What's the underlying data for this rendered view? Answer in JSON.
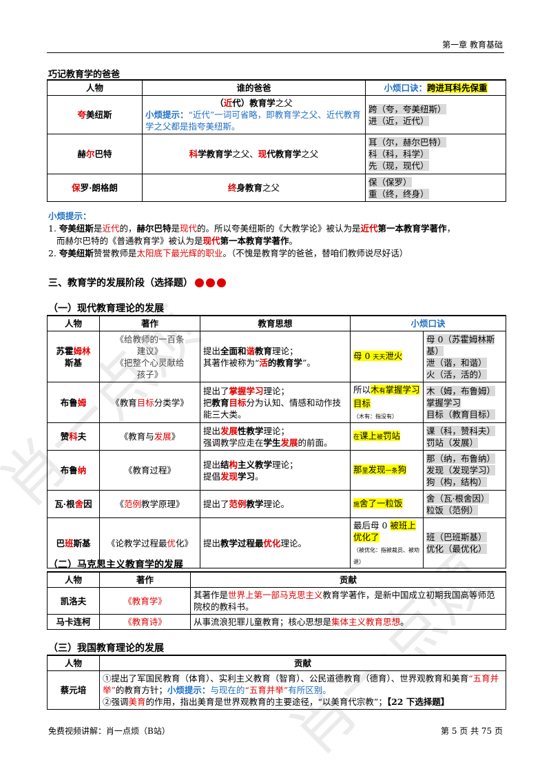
{
  "header": {
    "chapter": "第一章  教育基础"
  },
  "footer": {
    "left": "免费视频讲解：肖一点烦（B站）",
    "right": "第 5 页 共 75 页"
  },
  "watermark": "肖一点烦",
  "section_fathers": {
    "title": "巧记教育学的爸爸",
    "headers": {
      "person": "人物",
      "who": "谁的爸爸",
      "mnemonic_label": "小烦口诀：",
      "mnemonic": "跨进耳科先保重"
    },
    "rows": [
      {
        "name_red": "夸",
        "name_rest": "美纽斯",
        "who_line1_a": "（",
        "who_line1_red": "近",
        "who_line1_b": "代）教育学",
        "who_line1_c": "之父",
        "tip_label": "小烦提示：",
        "tip_text": "“近代”一词可省略，即教育学之父、近代教育学之父都是指夸美纽斯。",
        "mn": [
          "跨（夸，夸美纽斯）",
          "进（近，近代）"
        ]
      },
      {
        "name_a": "赫",
        "name_red": "尔",
        "name_b": "巴特",
        "who_red1": "科",
        "who_b1": "学教育学",
        "who_c1": "之父、",
        "who_red2": "现",
        "who_b2": "代教育学",
        "who_c2": "之父",
        "mn": [
          "耳（尔，赫尔巴特）",
          "科（科，科学）",
          "先（现，现代）"
        ]
      },
      {
        "name_red": "保",
        "name_rest": "罗·朗格朗",
        "who_red": "终",
        "who_b": "身教育",
        "who_c": "之父",
        "mn": [
          "保（保罗）",
          "重（终，终身）"
        ]
      }
    ],
    "tips_label": "小烦提示：",
    "tip1_parts": [
      "1.  ",
      "夸美纽斯",
      "是",
      "近代",
      "的，",
      "赫尔巴特",
      "是",
      "现代",
      "的。所以夸美纽斯的《大教学论》被认为是",
      "近代",
      "第一本教育学著作",
      "，"
    ],
    "tip1_line2": [
      "而赫尔巴特的《普通教育学》被认为是",
      "现代",
      "第一本教育学著作",
      "。"
    ],
    "tip2_parts": [
      "2.  ",
      "夸美纽斯",
      "赞誉教师是",
      "太阳底下最光辉的职业",
      "。（不愧是教育学的爸爸，替咱们教师说尽好话）"
    ]
  },
  "section3": {
    "title": "三、教育学的发展阶段（选择题）"
  },
  "sub1": {
    "title": "（一）现代教育理论的发展",
    "headers": [
      "人物",
      "著作",
      "教育思想",
      "小烦口诀"
    ],
    "rows": [
      {
        "name": [
          "苏霍",
          "姆林",
          "斯基"
        ],
        "work": "《给教师的一百条建议》\n《把整个心灵献给孩子》",
        "idea1": [
          "提出",
          "全面和",
          "谐",
          "教育",
          "理论；"
        ],
        "idea2": [
          "其著作被称为“",
          "活",
          "的教育学",
          "”。"
        ],
        "mn_main": "母 0 ",
        "mn_small": "天天",
        "mn_end": "泄火",
        "mn_right": [
          "母 0（苏霍姆林斯基）",
          "泄（谐，和谐）",
          "火（活，活的）"
        ]
      },
      {
        "name": [
          "布鲁",
          "姆"
        ],
        "work": [
          "《教育",
          "目标",
          "分类学》"
        ],
        "idea1": [
          "提出了",
          "掌握学习",
          "理论；"
        ],
        "idea2": [
          "把",
          "教育",
          "目标",
          "分为认知、情感和动作技能三大类。"
        ],
        "mn_pre": "所以",
        "mn_hl": "木",
        "mn_small": "有",
        "mn_hl2": "掌握学习目标",
        "mn_note": "（木有：指没有）",
        "mn_right": [
          "木（姆，布鲁姆）",
          "掌握学习",
          "目标（教育目标）"
        ]
      },
      {
        "name": [
          "赞",
          "科",
          "夫"
        ],
        "work": [
          "《教育与",
          "发展",
          "》"
        ],
        "idea1": [
          "提出",
          "发展",
          "性教学",
          "理论；"
        ],
        "idea2": [
          "强调教学应走在",
          "学生",
          "发展",
          "的前面。"
        ],
        "mn_small1": "在",
        "mn_hl": "课上",
        "mn_small2": "被",
        "mn_hl2": "罚站",
        "mn_right": [
          "课（科，赞科夫）",
          "罚站（发展）"
        ]
      },
      {
        "name": [
          "布鲁",
          "纳"
        ],
        "work": "《教育过程》",
        "idea1": [
          "提出",
          "结",
          "构",
          "主义",
          "教学",
          "理论；"
        ],
        "idea2": [
          "提倡",
          "发现",
          "学习",
          "。"
        ],
        "mn_hl": "那",
        "mn_small": "里",
        "mn_hl2": "发现",
        "mn_small2": "一条",
        "mn_hl3": "狗",
        "mn_right": [
          "那（纳，布鲁纳）",
          "发现（发现学习）",
          "狗（构，结构）"
        ]
      },
      {
        "name": [
          "瓦·根",
          "舍",
          "因"
        ],
        "work": [
          "《",
          "范例",
          "教学原理》"
        ],
        "idea1": [
          "提出了",
          "范例",
          "教学",
          "理论。"
        ],
        "mn_small": "施",
        "mn_hl": "舍了一粒饭",
        "mn_right": [
          "舍（瓦·根舍因）",
          "粒饭（范例）"
        ]
      },
      {
        "name": [
          "巴",
          "班",
          "斯基"
        ],
        "work": [
          "《论教学过程最",
          "优",
          "化》"
        ],
        "idea1": [
          "提出",
          "教学过程最",
          "优化",
          "理论。"
        ],
        "mn_pre": "最后母 0 ",
        "mn_hl": "被班上优化了",
        "mn_note": "（被优化：指被裁员、被劝退）",
        "mn_right": [
          "班（巴班斯基）",
          "优化（最优化）"
        ]
      }
    ]
  },
  "sub2": {
    "title": "（二）马克思主义教育学的发展",
    "headers": [
      "人物",
      "著作",
      "贡献"
    ],
    "rows": [
      {
        "name": "凯洛夫",
        "work": "《教育学》",
        "contrib": [
          "其著作是",
          "世界上第一部马克思主义",
          "教育学著作，是新中国成立初期我国高等师范院校的教科书。"
        ]
      },
      {
        "name": "马卡连柯",
        "work": "《教育诗》",
        "contrib": [
          "从事流浪犯罪儿童教育；核心思想是",
          "集体主义教育思想",
          "。"
        ]
      }
    ]
  },
  "sub3": {
    "title": "（三）我国教育理论的发展",
    "headers": [
      "人物",
      "贡献"
    ],
    "rows": [
      {
        "name": "蔡元培",
        "line1": [
          "①提出了军国民教育（体育）、实利主义教育（智育）、公民道德教育（德育）、世界观教育和美育",
          "“五育并举”",
          "的教育方针；",
          "小烦提示：",
          "与现在的",
          "“五育并举”",
          "有所区别。"
        ],
        "line2": [
          "②强调",
          "美育",
          "的作用，指出美育是世界观教育的主要途径，“以美育代宗教”；",
          "【22 下选择题】"
        ]
      }
    ]
  }
}
